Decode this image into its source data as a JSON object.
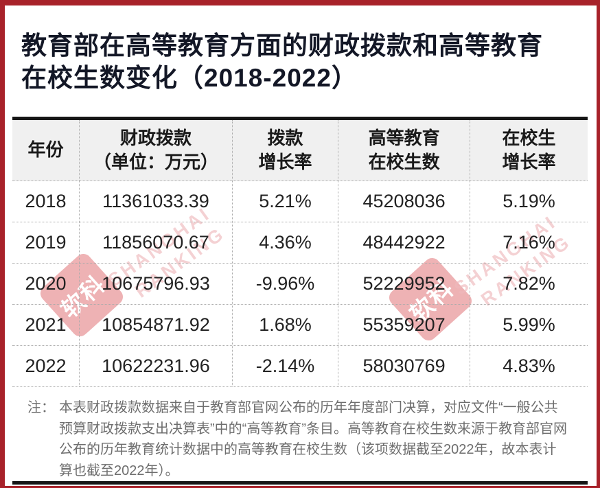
{
  "title": {
    "line1": "教育部在高等教育方面的财政拨款和高等教育",
    "line2": "在校生数变化（2018-2022）"
  },
  "chart_data": {
    "type": "table",
    "title": "教育部在高等教育方面的财政拨款和高等教育在校生数变化（2018-2022）",
    "columns": [
      "年份",
      "财政拨款（单位：万元）",
      "拨款增长率",
      "高等教育在校生数",
      "在校生增长率"
    ],
    "rows": [
      [
        "2018",
        "11361033.39",
        "5.21%",
        "45208036",
        "5.19%"
      ],
      [
        "2019",
        "11856070.67",
        "4.36%",
        "48442922",
        "7.16%"
      ],
      [
        "2020",
        "10675796.93",
        "-9.96%",
        "52229952",
        "7.82%"
      ],
      [
        "2021",
        "10854871.92",
        "1.68%",
        "55359207",
        "5.99%"
      ],
      [
        "2022",
        "10622231.96",
        "-2.14%",
        "58030769",
        "4.83%"
      ]
    ],
    "note": "注：本表财政拨款数据来自于教育部官网公布的历年年度部门决算，对应文件“一般公共预算财政拨款支出决算表”中的“高等教育”条目。高等教育在校生数来源于教育部官网公布的历年教育统计数据中的高等教育在校生数（该项数据截至2022年，故本表计算也截至2022年）。"
  },
  "table": {
    "headers": [
      {
        "line1": "年份",
        "line2": ""
      },
      {
        "line1": "财政拨款",
        "line2": "（单位：万元）"
      },
      {
        "line1": "拨款",
        "line2": "增长率"
      },
      {
        "line1": "高等教育",
        "line2": "在校生数"
      },
      {
        "line1": "在校生",
        "line2": "增长率"
      }
    ]
  },
  "note": {
    "label": "注：",
    "text": "本表财政拨款数据来自于教育部官网公布的历年年度部门决算，对应文件“一般公共预算财政拨款支出决算表”中的“高等教育”条目。高等教育在校生数来源于教育部官网公布的历年教育统计数据中的高等教育在校生数（该项数据截至2022年，故本表计算也截至2022年）。"
  },
  "watermark": {
    "logo_text": "软科",
    "brand_line1": "SHANGHAI",
    "brand_line2": "RANKING",
    "logo_color": "#d94a4f"
  },
  "colors": {
    "frame_red": "#a8222a",
    "title_text": "#131726",
    "table_line": "#161616",
    "header_bg": "#f0f0f0",
    "note_text": "#6e6e6e",
    "watermark_pink": "#efb9bd"
  }
}
